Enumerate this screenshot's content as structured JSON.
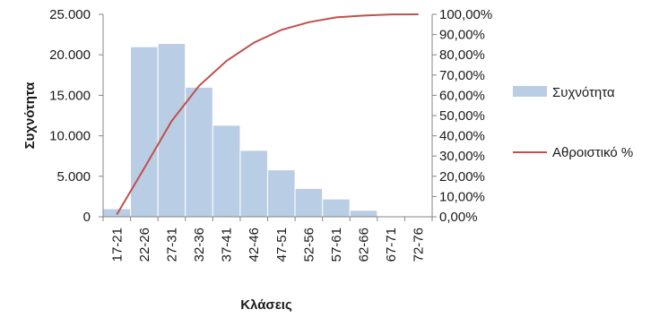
{
  "chart_data": {
    "type": "bar",
    "categories": [
      "17-21",
      "22-26",
      "27-31",
      "32-36",
      "37-41",
      "42-46",
      "47-51",
      "52-56",
      "57-61",
      "62-66",
      "67-71",
      "72-76"
    ],
    "series": [
      {
        "name": "Συχνότητα",
        "kind": "bar",
        "axis": "left",
        "color": "#b9cde5",
        "values": [
          1000,
          21000,
          21400,
          16000,
          11300,
          8200,
          5800,
          3500,
          2200,
          800,
          50,
          20
        ]
      },
      {
        "name": "Αθροιστικό %",
        "kind": "line",
        "axis": "right",
        "color": "#c0504d",
        "values": [
          1.1,
          24.0,
          47.3,
          64.7,
          77.0,
          86.0,
          92.3,
          96.1,
          98.5,
          99.4,
          99.95,
          100.0
        ]
      }
    ],
    "xlabel": "Κλάσεις",
    "ylabel": "Συχνότητα",
    "y_left": {
      "min": 0,
      "max": 25000,
      "ticks": [
        "0",
        "5.000",
        "10.000",
        "15.000",
        "20.000",
        "25.000"
      ]
    },
    "y_right": {
      "min": 0,
      "max": 100,
      "ticks": [
        "0,00%",
        "10,00%",
        "20,00%",
        "30,00%",
        "40,00%",
        "50,00%",
        "60,00%",
        "70,00%",
        "80,00%",
        "90,00%",
        "100,00%"
      ]
    },
    "grid": false,
    "legend_position": "right"
  }
}
